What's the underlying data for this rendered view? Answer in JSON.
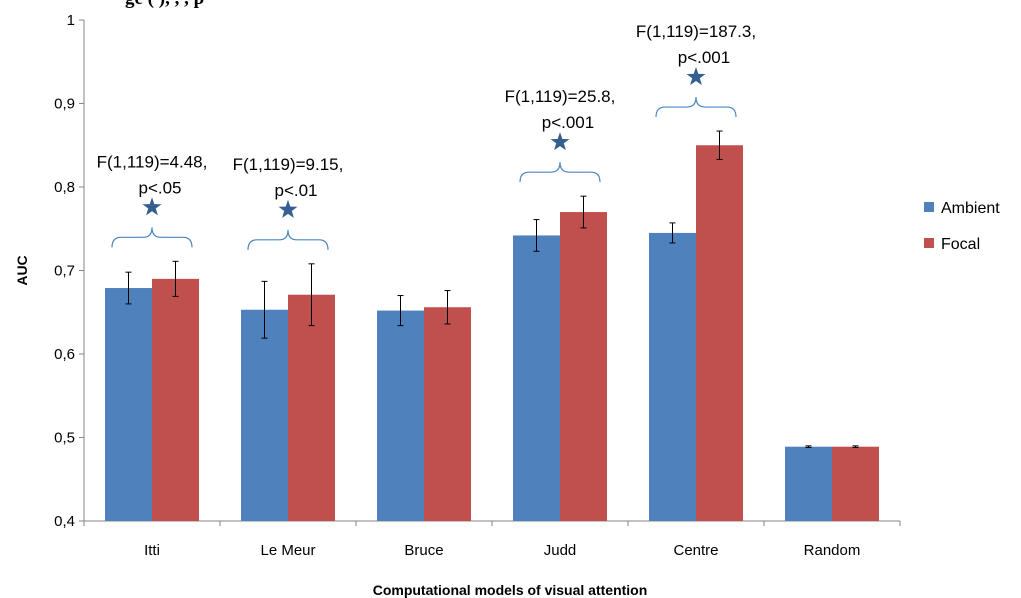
{
  "top_text": "ge (            ),  ,         ,                 p",
  "chart_data": {
    "type": "bar",
    "title": "",
    "xlabel": "Computational models of visual attention",
    "ylabel": "AUC",
    "ylim": [
      0.4,
      1.0
    ],
    "yticks": [
      0.4,
      0.5,
      0.6,
      0.7,
      0.8,
      0.9,
      1.0
    ],
    "ytick_labels": [
      "0,4",
      "0,5",
      "0,6",
      "0,7",
      "0,8",
      "0,9",
      "1"
    ],
    "categories": [
      "Itti",
      "Le Meur",
      "Bruce",
      "Judd",
      "Centre",
      "Random"
    ],
    "series": [
      {
        "name": "Ambient",
        "color": "#4f81bd",
        "values": [
          0.679,
          0.653,
          0.652,
          0.742,
          0.745,
          0.489
        ],
        "errors": [
          0.019,
          0.034,
          0.018,
          0.019,
          0.012,
          0.001
        ]
      },
      {
        "name": "Focal",
        "color": "#c0504d",
        "values": [
          0.69,
          0.671,
          0.656,
          0.77,
          0.85,
          0.489
        ],
        "errors": [
          0.021,
          0.037,
          0.02,
          0.019,
          0.017,
          0.001
        ]
      }
    ],
    "legend_position": "right",
    "grid": false,
    "annotations": [
      {
        "category": "Itti",
        "lines": [
          "F(1,119)=4.48,",
          "p<.05"
        ],
        "marker": "star"
      },
      {
        "category": "Le Meur",
        "lines": [
          "F(1,119)=9.15,",
          "p<.01"
        ],
        "marker": "star"
      },
      {
        "category": "Judd",
        "lines": [
          "F(1,119)=25.8,",
          "p<.001"
        ],
        "marker": "star"
      },
      {
        "category": "Centre",
        "lines": [
          "F(1,119)=187.3,",
          "p<.001"
        ],
        "marker": "star"
      }
    ],
    "marker_color": "#365f91",
    "bracket_color": "#4a86c5"
  }
}
